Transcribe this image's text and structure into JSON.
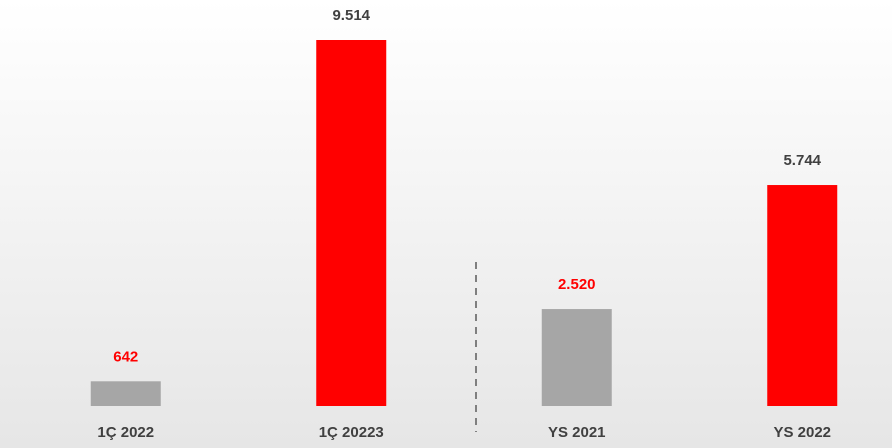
{
  "chart_data": {
    "type": "bar",
    "categories": [
      "1Ç 2022",
      "1Ç 20223",
      "YS 2021",
      "YS 2022"
    ],
    "values": [
      642,
      9514,
      2520,
      5744
    ],
    "value_labels": [
      "642",
      "9.514",
      "2.520",
      "5.744"
    ],
    "colors": [
      "#a6a6a6",
      "#ff0000",
      "#a6a6a6",
      "#ff0000"
    ],
    "label_colors": [
      "#ff0000",
      "#404040",
      "#ff0000",
      "#404040"
    ]
  }
}
